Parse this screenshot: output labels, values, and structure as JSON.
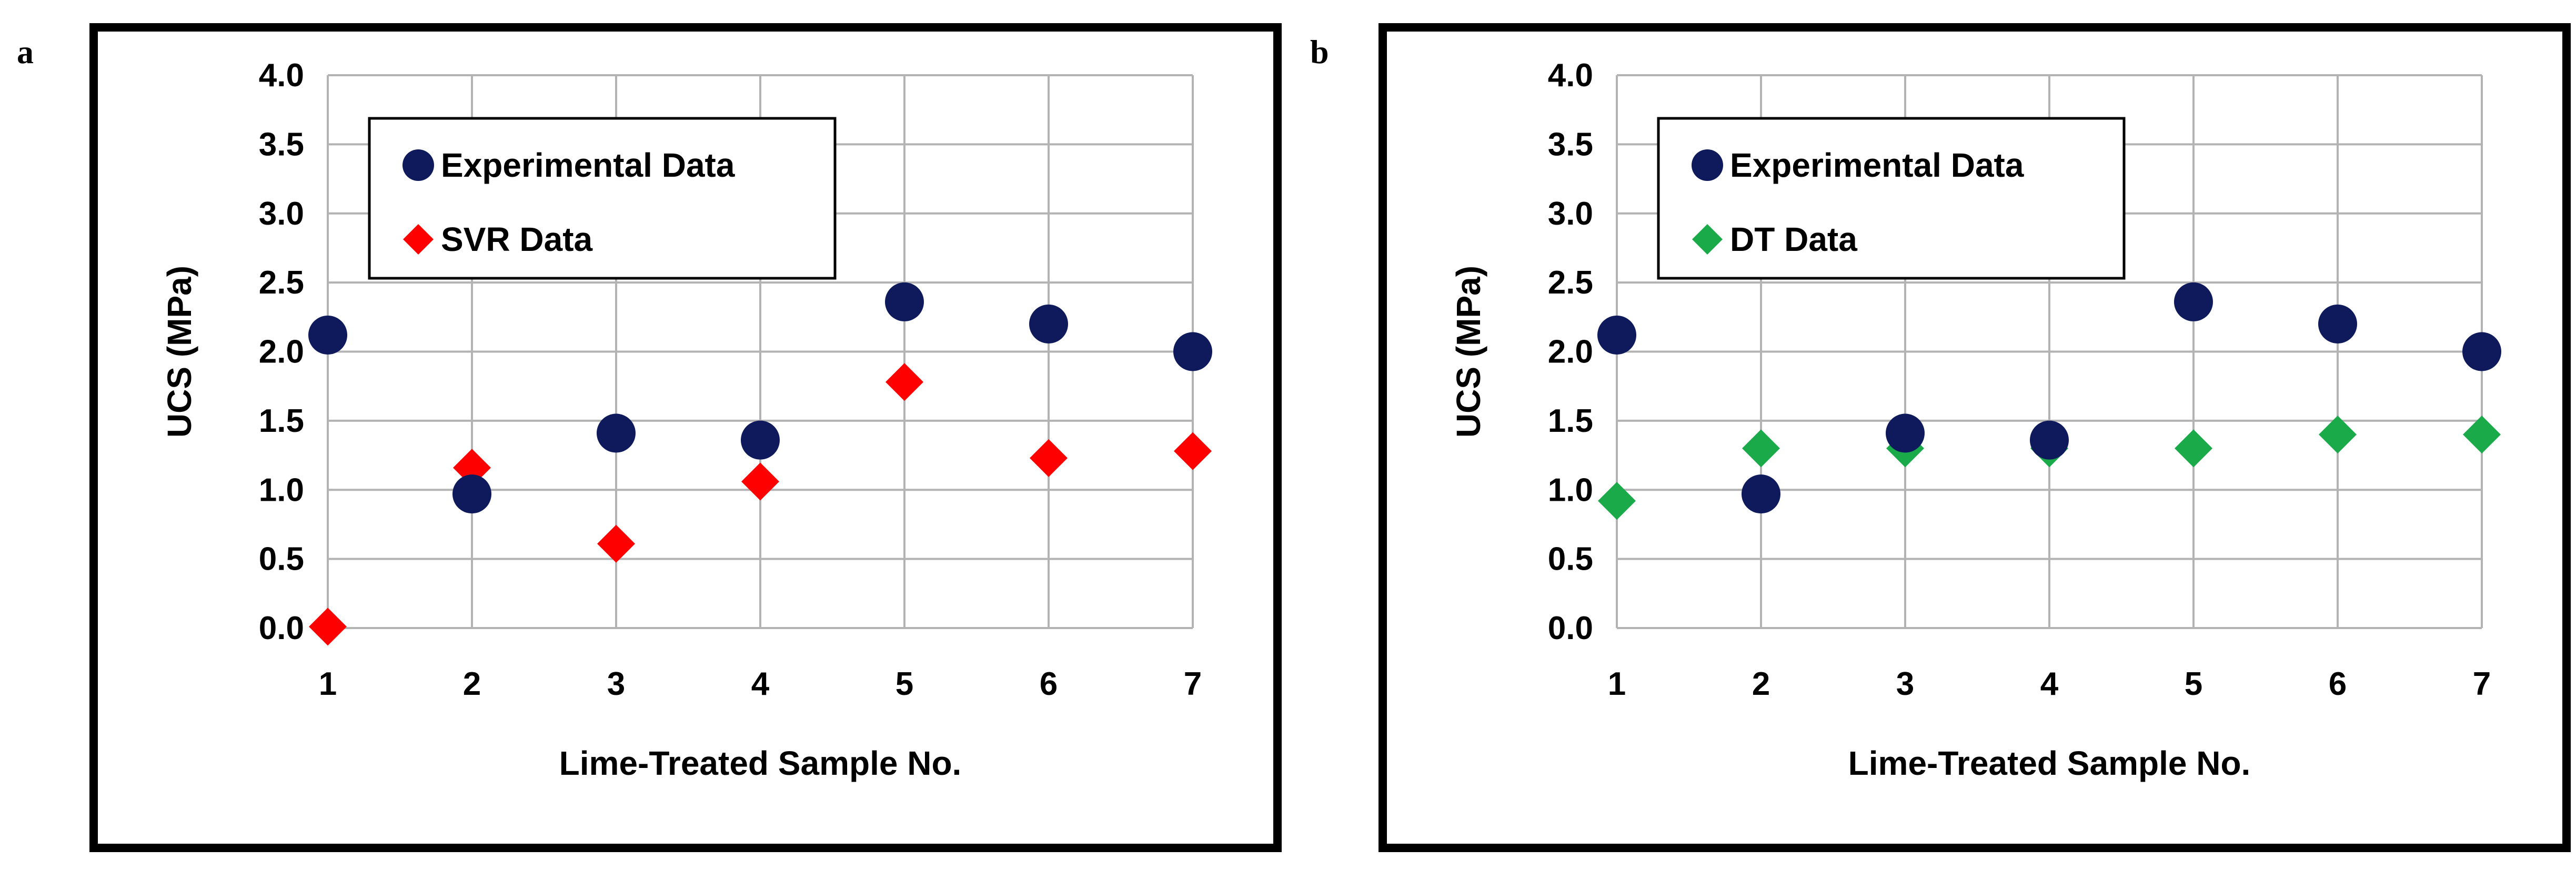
{
  "panels": {
    "a": {
      "letter": "a"
    },
    "b": {
      "letter": "b"
    }
  },
  "chart_data": [
    {
      "type": "scatter",
      "panel": "a",
      "title": "",
      "xlabel": "Lime-Treated Sample No.",
      "ylabel": "UCS (MPa)",
      "xlim": [
        1,
        7
      ],
      "ylim": [
        0,
        4
      ],
      "x_ticks": [
        "1",
        "2",
        "3",
        "4",
        "5",
        "6",
        "7"
      ],
      "y_ticks": [
        "0.0",
        "0.5",
        "1.0",
        "1.5",
        "2.0",
        "2.5",
        "3.0",
        "3.5",
        "4.0"
      ],
      "grid": true,
      "legend_position": "top-left",
      "x": [
        1,
        2,
        3,
        4,
        5,
        6,
        7
      ],
      "series": [
        {
          "name": "Experimental Data",
          "marker": "circle",
          "color": "#0e1a5c",
          "values": [
            2.12,
            0.97,
            1.41,
            1.36,
            2.36,
            2.2,
            2.0
          ]
        },
        {
          "name": "SVR Data",
          "marker": "diamond",
          "color": "#ff0000",
          "values": [
            0.01,
            1.16,
            0.61,
            1.06,
            1.78,
            1.23,
            1.28
          ]
        }
      ]
    },
    {
      "type": "scatter",
      "panel": "b",
      "title": "",
      "xlabel": "Lime-Treated Sample No.",
      "ylabel": "UCS (MPa)",
      "xlim": [
        1,
        7
      ],
      "ylim": [
        0,
        4
      ],
      "x_ticks": [
        "1",
        "2",
        "3",
        "4",
        "5",
        "6",
        "7"
      ],
      "y_ticks": [
        "0.0",
        "0.5",
        "1.0",
        "1.5",
        "2.0",
        "2.5",
        "3.0",
        "3.5",
        "4.0"
      ],
      "grid": true,
      "legend_position": "top-left",
      "x": [
        1,
        2,
        3,
        4,
        5,
        6,
        7
      ],
      "series": [
        {
          "name": "Experimental Data",
          "marker": "circle",
          "color": "#0e1a5c",
          "values": [
            2.12,
            0.97,
            1.41,
            1.36,
            2.36,
            2.2,
            2.0
          ]
        },
        {
          "name": "DT Data",
          "marker": "diamond",
          "color": "#1aaa4a",
          "values": [
            0.92,
            1.3,
            1.3,
            1.3,
            1.3,
            1.4,
            1.4
          ]
        }
      ]
    }
  ]
}
